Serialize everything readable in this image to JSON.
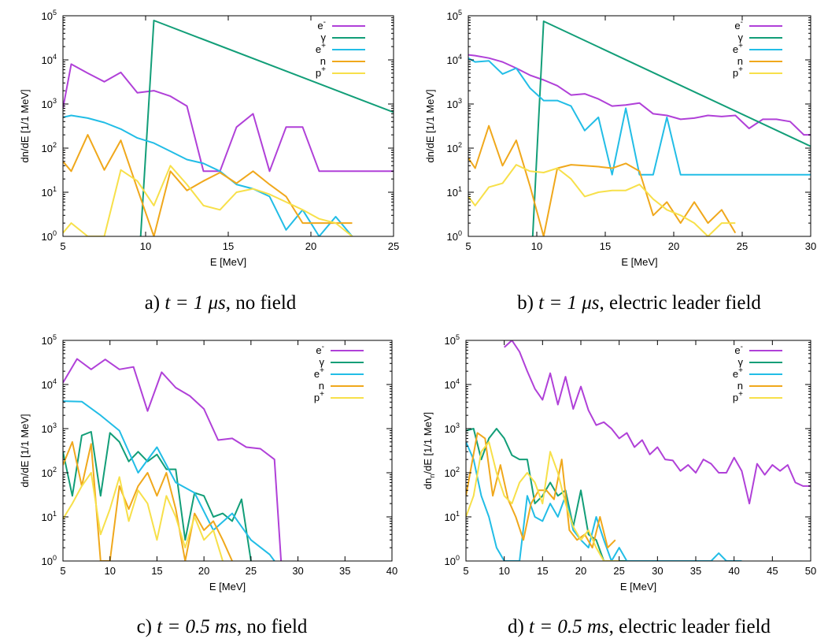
{
  "species": [
    {
      "key": "electron",
      "label": "e-",
      "color": "#b040d8"
    },
    {
      "key": "gamma",
      "label": "γ",
      "color": "#129e78"
    },
    {
      "key": "positron",
      "label": "e+",
      "color": "#22bde6"
    },
    {
      "key": "neutron",
      "label": "n",
      "color": "#f0a81c"
    },
    {
      "key": "proton",
      "label": "p+",
      "color": "#f7e04a"
    }
  ],
  "chart_data": [
    {
      "type": "line",
      "panel": "a",
      "caption": {
        "prefix": "a)",
        "time": "t = 1 μs",
        "condition": "no field"
      },
      "xlabel": "E [MeV]",
      "ylabel": "dn/dE [1/1 MeV]",
      "xlim": [
        5,
        25
      ],
      "ylim": [
        1,
        100000
      ],
      "yscale": "log",
      "xticks": [
        5,
        10,
        15,
        20,
        25
      ],
      "yticks": [
        1,
        10,
        100,
        1000,
        10000,
        100000
      ],
      "legend": "top-right",
      "grid": false,
      "series": [
        {
          "name": "e-",
          "x": [
            5,
            5.5,
            6.5,
            7.5,
            8.5,
            9.5,
            10.5,
            11.5,
            12.5,
            13.5,
            14.5,
            15.5,
            16.5,
            17.5,
            18.5,
            19.5,
            20.5,
            21.5,
            22.5,
            23.5,
            24.5,
            25
          ],
          "y": [
            800,
            8000,
            5000,
            3200,
            5200,
            1800,
            2000,
            1500,
            900,
            30,
            30,
            300,
            600,
            30,
            300,
            300,
            30,
            30,
            30,
            30,
            30,
            30
          ]
        },
        {
          "name": "γ",
          "x": [
            9.7,
            10.5,
            25
          ],
          "y": [
            1,
            78000,
            650
          ]
        },
        {
          "name": "e+",
          "x": [
            5,
            5.5,
            6.5,
            7.5,
            8.5,
            9.5,
            10.5,
            11.5,
            12.5,
            13.5,
            14.5,
            15.5,
            16.5,
            17.5,
            18.5,
            19.5,
            20.5,
            21.5,
            22.5
          ],
          "y": [
            500,
            550,
            480,
            380,
            270,
            170,
            130,
            85,
            55,
            45,
            30,
            15,
            12,
            8,
            1.4,
            4,
            1,
            2.8,
            1
          ]
        },
        {
          "name": "n",
          "x": [
            5,
            5.5,
            6.5,
            7.5,
            8.5,
            9.5,
            10.5,
            11.5,
            12.5,
            13.5,
            14.5,
            15.5,
            16.5,
            17.5,
            18.5,
            19.5,
            20.5,
            21.5,
            22.5
          ],
          "y": [
            50,
            30,
            200,
            32,
            150,
            12,
            1,
            30,
            11,
            18,
            28,
            16,
            30,
            15,
            8,
            2,
            2,
            2,
            2
          ]
        },
        {
          "name": "p+",
          "x": [
            5,
            5.5,
            6.5,
            7.5,
            8.5,
            9.5,
            10.5,
            11.5,
            12.5,
            13.5,
            14.5,
            15.5,
            16.5,
            17.5,
            18.5,
            19.5,
            20.5,
            21.5,
            22.5
          ],
          "y": [
            1.2,
            2,
            1,
            1,
            32,
            18,
            5,
            40,
            15,
            5,
            4,
            10,
            12,
            9,
            6,
            4,
            2.5,
            2,
            1
          ]
        }
      ]
    },
    {
      "type": "line",
      "panel": "b",
      "caption": {
        "prefix": "b)",
        "time": "t = 1 μs",
        "condition": "electric leader field"
      },
      "xlabel": "E [MeV]",
      "ylabel": "dn/dE [1/1 MeV]",
      "xlim": [
        5,
        30
      ],
      "ylim": [
        1,
        100000
      ],
      "yscale": "log",
      "xticks": [
        5,
        10,
        15,
        20,
        25,
        30
      ],
      "yticks": [
        1,
        10,
        100,
        1000,
        10000,
        100000
      ],
      "legend": "top-right",
      "grid": false,
      "series": [
        {
          "name": "e-",
          "x": [
            5,
            5.5,
            6.5,
            7.5,
            8.5,
            9.5,
            10.5,
            11.5,
            12.5,
            13.5,
            14.5,
            15.5,
            16.5,
            17.5,
            18.5,
            19.5,
            20.5,
            21.5,
            22.5,
            23.5,
            24.5,
            25.5,
            26.5,
            27.5,
            28.5,
            29.5,
            30
          ],
          "y": [
            13000,
            12500,
            11000,
            9000,
            6500,
            4500,
            3500,
            2600,
            1600,
            1700,
            1300,
            900,
            950,
            1050,
            600,
            550,
            450,
            480,
            550,
            520,
            550,
            280,
            450,
            450,
            400,
            200,
            200
          ]
        },
        {
          "name": "γ",
          "x": [
            9.7,
            10.5,
            30
          ],
          "y": [
            1,
            75000,
            110
          ]
        },
        {
          "name": "e+",
          "x": [
            5,
            5.5,
            6.5,
            7.5,
            8.5,
            9.5,
            10.5,
            11.5,
            12.5,
            13.5,
            14.5,
            15.5,
            16.5,
            17.5,
            18.5,
            19.5,
            20.5,
            21.5,
            22.5,
            23.5,
            24.5,
            25.5,
            26.5,
            27.5,
            28.5,
            29.5,
            30
          ],
          "y": [
            11000,
            9000,
            9500,
            4800,
            6500,
            2300,
            1200,
            1200,
            900,
            250,
            500,
            25,
            800,
            25,
            25,
            500,
            25,
            25,
            25,
            25,
            25,
            25,
            25,
            25,
            25,
            25,
            25
          ]
        },
        {
          "name": "n",
          "x": [
            5,
            5.5,
            6.5,
            7.5,
            8.5,
            9.5,
            10.5,
            11.5,
            12.5,
            13.5,
            14.5,
            15.5,
            16.5,
            17.5,
            18.5,
            19.5,
            20.5,
            21.5,
            22.5,
            23.5,
            24.5
          ],
          "y": [
            60,
            35,
            320,
            40,
            150,
            14,
            1,
            35,
            42,
            40,
            38,
            35,
            45,
            30,
            3,
            6,
            2,
            6,
            2,
            4,
            1.2
          ]
        },
        {
          "name": "p+",
          "x": [
            5,
            5.5,
            6.5,
            7.5,
            8.5,
            9.5,
            10.5,
            11.5,
            12.5,
            13.5,
            14.5,
            15.5,
            16.5,
            17.5,
            18.5,
            19.5,
            20.5,
            21.5,
            22.5,
            23.5,
            24.5
          ],
          "y": [
            8,
            5,
            13,
            16,
            42,
            30,
            28,
            35,
            20,
            8,
            10,
            11,
            11,
            15,
            7,
            4,
            3,
            2,
            1,
            2,
            2
          ]
        }
      ]
    },
    {
      "type": "line",
      "panel": "c",
      "caption": {
        "prefix": "c)",
        "time": "t = 0.5 ms",
        "condition": "no field"
      },
      "xlabel": "E [MeV]",
      "ylabel": "dn/dE [1/1 MeV]",
      "xlim": [
        5,
        40
      ],
      "ylim": [
        1,
        100000
      ],
      "yscale": "log",
      "xticks": [
        5,
        10,
        15,
        20,
        25,
        30,
        35,
        40
      ],
      "yticks": [
        1,
        10,
        100,
        1000,
        10000,
        100000
      ],
      "legend": "top-right",
      "grid": false,
      "series": [
        {
          "name": "e-",
          "x": [
            5,
            6.5,
            8,
            9.5,
            11,
            12.5,
            14,
            15.5,
            17,
            18.5,
            20,
            21.5,
            23,
            24.5,
            26,
            27.5,
            28.2
          ],
          "y": [
            11000,
            38000,
            22000,
            37000,
            22000,
            25000,
            2500,
            19000,
            8500,
            5500,
            2800,
            550,
            600,
            380,
            350,
            200,
            1
          ]
        },
        {
          "name": "γ",
          "x": [
            5,
            6,
            7,
            8,
            9,
            10,
            11,
            12,
            13,
            14,
            15,
            16,
            17,
            18,
            19,
            20,
            21,
            22,
            23,
            24,
            25
          ],
          "y": [
            300,
            30,
            700,
            850,
            30,
            800,
            500,
            180,
            300,
            180,
            260,
            120,
            120,
            3,
            35,
            30,
            10,
            12,
            8,
            25,
            1
          ]
        },
        {
          "name": "e+",
          "x": [
            5,
            7,
            9,
            11,
            13,
            15,
            17,
            19,
            21,
            23,
            25,
            27,
            27.5
          ],
          "y": [
            4200,
            4100,
            2000,
            900,
            100,
            380,
            60,
            35,
            5,
            12,
            3,
            1.4,
            1
          ]
        },
        {
          "name": "n",
          "x": [
            5,
            6,
            7,
            8,
            9,
            10,
            11,
            12,
            13,
            14,
            15,
            16,
            17,
            18,
            19,
            20,
            21,
            22,
            23
          ],
          "y": [
            150,
            500,
            50,
            450,
            1,
            1,
            50,
            15,
            50,
            100,
            30,
            100,
            15,
            1,
            12,
            5,
            8,
            3,
            1
          ]
        },
        {
          "name": "p+",
          "x": [
            5,
            6,
            7,
            8,
            9,
            10,
            11,
            12,
            13,
            14,
            15,
            16,
            17,
            18,
            19,
            20,
            21,
            22
          ],
          "y": [
            9,
            20,
            50,
            100,
            4,
            15,
            80,
            8,
            40,
            20,
            3,
            30,
            10,
            2,
            10,
            3,
            5,
            1
          ]
        }
      ]
    },
    {
      "type": "line",
      "panel": "d",
      "caption": {
        "prefix": "d)",
        "time": "t = 0.5 ms",
        "condition": "electric leader field"
      },
      "xlabel": "E [MeV]",
      "ylabel": "dnn/dE [1/1 MeV]",
      "ylabel_parts": {
        "base": "dn",
        "sub": "n",
        "rest": "/dE [1/1 MeV]"
      },
      "xlim": [
        5,
        50
      ],
      "ylim": [
        1,
        100000
      ],
      "yscale": "log",
      "xticks": [
        5,
        10,
        15,
        20,
        25,
        30,
        35,
        40,
        45,
        50
      ],
      "yticks": [
        1,
        10,
        100,
        1000,
        10000,
        100000
      ],
      "legend": "top-right",
      "grid": false,
      "series": [
        {
          "name": "e-",
          "x": [
            10,
            11,
            12,
            13,
            14,
            15,
            16,
            17,
            18,
            19,
            20,
            21,
            22,
            23,
            24,
            25,
            26,
            27,
            28,
            29,
            30,
            31,
            32,
            33,
            34,
            35,
            36,
            37,
            38,
            39,
            40,
            41,
            42,
            43,
            44,
            45,
            46,
            47,
            48,
            49,
            50
          ],
          "y": [
            70000,
            100000,
            55000,
            20000,
            8000,
            4500,
            18000,
            3500,
            15000,
            2800,
            9000,
            2600,
            1200,
            1400,
            1000,
            600,
            800,
            380,
            550,
            260,
            380,
            200,
            190,
            110,
            150,
            100,
            200,
            160,
            100,
            100,
            220,
            110,
            20,
            160,
            90,
            150,
            110,
            150,
            60,
            50,
            50
          ]
        },
        {
          "name": "γ",
          "x": [
            5,
            6,
            7,
            8,
            9,
            10,
            11,
            12,
            13,
            14,
            15,
            16,
            17,
            18,
            19,
            20,
            21,
            22,
            23,
            24,
            25,
            26,
            27,
            28,
            29,
            30
          ],
          "y": [
            900,
            1000,
            200,
            600,
            1000,
            600,
            250,
            200,
            200,
            20,
            30,
            60,
            30,
            40,
            6,
            40,
            4,
            3,
            1,
            1,
            1,
            1,
            1,
            1,
            1,
            1
          ]
        },
        {
          "name": "e+",
          "x": [
            5,
            6,
            7,
            8,
            9,
            10,
            11,
            12,
            13,
            14,
            15,
            16,
            17,
            18,
            19,
            20,
            21,
            22,
            23,
            24,
            25,
            26,
            27,
            28,
            29,
            30,
            31,
            32,
            33,
            34,
            35,
            36,
            37,
            38,
            39,
            40,
            41
          ],
          "y": [
            500,
            200,
            30,
            10,
            2,
            1,
            1,
            1,
            30,
            10,
            8,
            20,
            10,
            30,
            5,
            3,
            2,
            10,
            3,
            1,
            2,
            1,
            1,
            1,
            1,
            1,
            1,
            1,
            1,
            1,
            1,
            1,
            1,
            1.5,
            1,
            1,
            1
          ]
        },
        {
          "name": "n",
          "x": [
            5,
            5.5,
            6.5,
            7.5,
            8.5,
            9.5,
            10.5,
            11.5,
            12.5,
            13.5,
            14.5,
            15.5,
            16.5,
            17.5,
            18.5,
            19.5,
            20.5,
            21.5,
            22.5,
            23.5,
            24.5
          ],
          "y": [
            30,
            90,
            800,
            600,
            30,
            150,
            25,
            10,
            3,
            20,
            40,
            40,
            25,
            200,
            5,
            3,
            4,
            2,
            10,
            2,
            3
          ]
        },
        {
          "name": "p+",
          "x": [
            5,
            6,
            7,
            8,
            9,
            10,
            11,
            12,
            13,
            14,
            15,
            16,
            17,
            18,
            19,
            20,
            21,
            22,
            23,
            24,
            25
          ],
          "y": [
            10,
            30,
            300,
            500,
            100,
            30,
            20,
            60,
            100,
            60,
            20,
            300,
            100,
            20,
            6,
            3,
            5,
            2,
            1,
            1,
            1
          ]
        }
      ]
    }
  ]
}
